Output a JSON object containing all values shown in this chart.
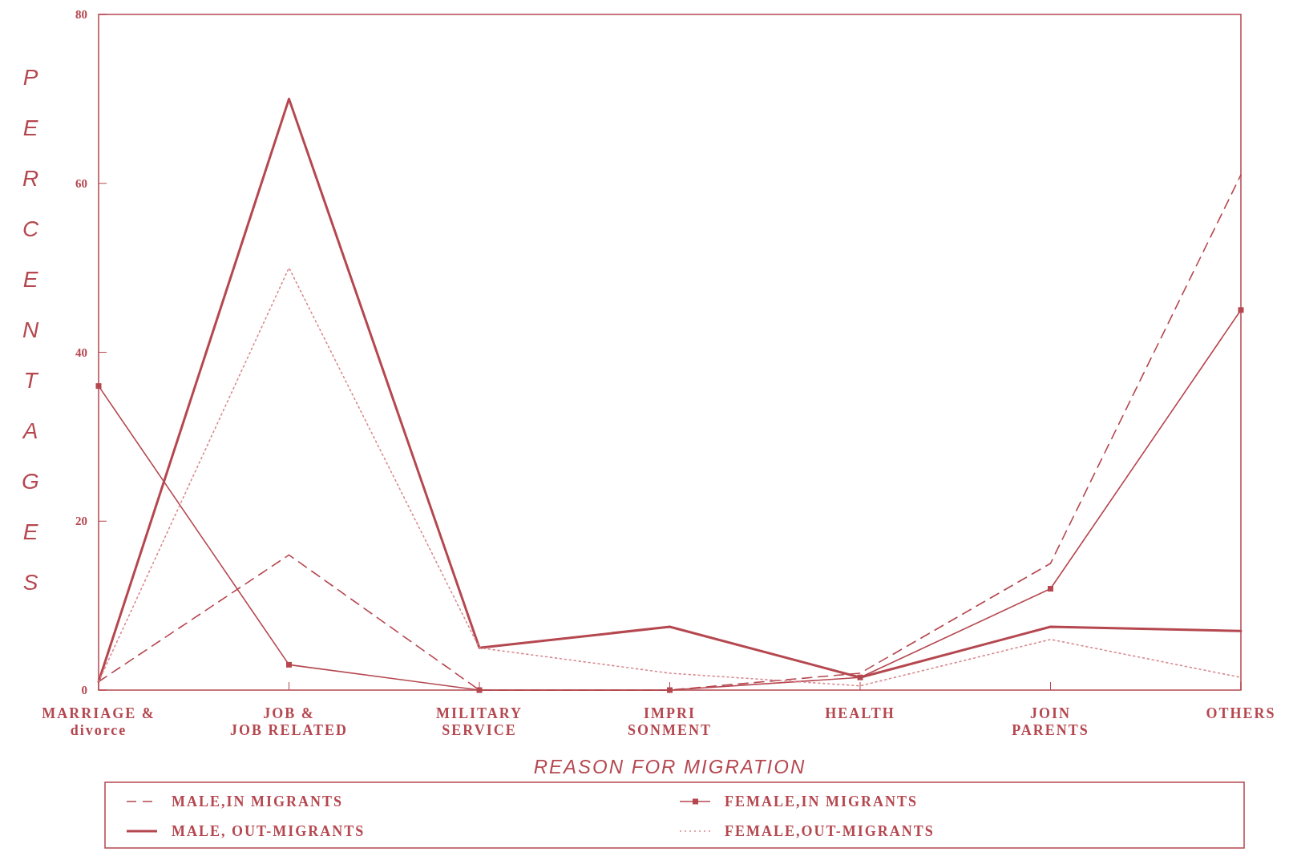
{
  "chart_data": {
    "type": "line",
    "xlabel": "REASON FOR MIGRATION",
    "ylabel": "PERCENTAGES",
    "categories": [
      "MARRIAGE &\ndivorce",
      "JOB &\nJOB RELATED",
      "MILITARY\nSERVICE",
      "IMPRI\nSONMENT",
      "HEALTH",
      "JOIN\nPARENTS",
      "OTHERS"
    ],
    "series": [
      {
        "name": "MALE,IN MIGRANTS",
        "color": "#b5474f",
        "line_style": "dashed",
        "marker": "none",
        "values": [
          1,
          16,
          0,
          0,
          2,
          15,
          61
        ]
      },
      {
        "name": "FEMALE,IN MIGRANTS",
        "color": "#b5474f",
        "line_style": "solid",
        "marker": "square",
        "values": [
          36,
          3,
          0,
          0,
          1.5,
          12,
          45
        ]
      },
      {
        "name": "MALE, OUT-MIGRANTS",
        "color": "#b5474f",
        "line_style": "solid",
        "marker": "none",
        "values": [
          1,
          70,
          5,
          7.5,
          1.5,
          7.5,
          7
        ]
      },
      {
        "name": "FEMALE,OUT-MIGRANTS",
        "color": "#d98a90",
        "line_style": "dotted",
        "marker": "none",
        "values": [
          1,
          50,
          5,
          2,
          0.5,
          6,
          1.5
        ]
      }
    ],
    "ylim": [
      0,
      80
    ],
    "yticks": [
      0,
      20,
      40,
      60,
      80
    ],
    "grid": false,
    "legend": "bottom"
  }
}
